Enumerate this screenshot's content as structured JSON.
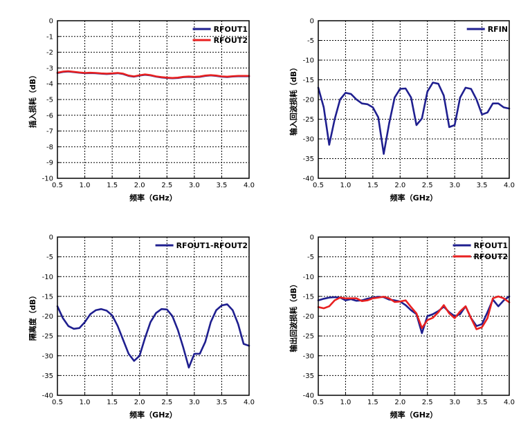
{
  "chart_data": [
    {
      "type": "line",
      "xlabel": "频率（GHz）",
      "ylabel": "插入损耗（dB）",
      "xlim": [
        0.5,
        4.0
      ],
      "ylim": [
        -10,
        0
      ],
      "xticks": [
        "0.5",
        "1.0",
        "1.5",
        "2.0",
        "2.5",
        "3.0",
        "3.5",
        "4.0"
      ],
      "yticks": [
        "0",
        "-1",
        "-2",
        "-3",
        "-4",
        "-5",
        "-6",
        "-7",
        "-8",
        "-9",
        "-10"
      ],
      "grid": true,
      "legend_position": "top-right",
      "series": [
        {
          "name": "RFOUT1",
          "color": "#1f1f8f",
          "x": [
            0.5,
            0.6,
            0.7,
            0.8,
            0.9,
            1.0,
            1.1,
            1.2,
            1.3,
            1.4,
            1.5,
            1.6,
            1.7,
            1.8,
            1.9,
            2.0,
            2.1,
            2.2,
            2.3,
            2.4,
            2.5,
            2.6,
            2.7,
            2.8,
            2.9,
            3.0,
            3.1,
            3.2,
            3.3,
            3.4,
            3.5,
            3.6,
            3.7,
            3.8,
            3.9,
            4.0
          ],
          "y": [
            -3.32,
            -3.25,
            -3.22,
            -3.26,
            -3.3,
            -3.33,
            -3.32,
            -3.33,
            -3.36,
            -3.38,
            -3.36,
            -3.33,
            -3.38,
            -3.5,
            -3.55,
            -3.48,
            -3.43,
            -3.47,
            -3.55,
            -3.6,
            -3.63,
            -3.65,
            -3.63,
            -3.58,
            -3.56,
            -3.58,
            -3.56,
            -3.5,
            -3.47,
            -3.5,
            -3.55,
            -3.57,
            -3.54,
            -3.52,
            -3.52,
            -3.52
          ]
        },
        {
          "name": "RFOUT2",
          "color": "#e82020",
          "x": [
            0.5,
            0.6,
            0.7,
            0.8,
            0.9,
            1.0,
            1.1,
            1.2,
            1.3,
            1.4,
            1.5,
            1.6,
            1.7,
            1.8,
            1.9,
            2.0,
            2.1,
            2.2,
            2.3,
            2.4,
            2.5,
            2.6,
            2.7,
            2.8,
            2.9,
            3.0,
            3.1,
            3.2,
            3.3,
            3.4,
            3.5,
            3.6,
            3.7,
            3.8,
            3.9,
            4.0
          ],
          "y": [
            -3.3,
            -3.23,
            -3.2,
            -3.24,
            -3.28,
            -3.31,
            -3.3,
            -3.31,
            -3.34,
            -3.36,
            -3.34,
            -3.31,
            -3.36,
            -3.48,
            -3.53,
            -3.46,
            -3.41,
            -3.45,
            -3.53,
            -3.58,
            -3.61,
            -3.63,
            -3.61,
            -3.56,
            -3.54,
            -3.56,
            -3.54,
            -3.48,
            -3.45,
            -3.48,
            -3.53,
            -3.55,
            -3.52,
            -3.5,
            -3.5,
            -3.5
          ]
        }
      ]
    },
    {
      "type": "line",
      "xlabel": "频率（GHz）",
      "ylabel": "输入回波损耗（dB）",
      "xlim": [
        0.5,
        4.0
      ],
      "ylim": [
        -40,
        0
      ],
      "xticks": [
        "0.5",
        "1.0",
        "1.5",
        "2.0",
        "2.5",
        "3.0",
        "3.5",
        "4.0"
      ],
      "yticks": [
        "0",
        "-5",
        "-10",
        "-15",
        "-20",
        "-25",
        "-30",
        "-35",
        "-40"
      ],
      "grid": true,
      "legend_position": "top-right",
      "series": [
        {
          "name": "RFIN",
          "color": "#1f1f8f",
          "x": [
            0.5,
            0.6,
            0.7,
            0.8,
            0.9,
            1.0,
            1.1,
            1.2,
            1.3,
            1.4,
            1.5,
            1.6,
            1.7,
            1.8,
            1.9,
            2.0,
            2.1,
            2.2,
            2.3,
            2.4,
            2.5,
            2.6,
            2.7,
            2.8,
            2.9,
            3.0,
            3.1,
            3.2,
            3.3,
            3.4,
            3.5,
            3.6,
            3.7,
            3.8,
            3.9,
            4.0
          ],
          "y": [
            -17,
            -22,
            -31.5,
            -25,
            -20,
            -18.3,
            -18.6,
            -20,
            -21,
            -21.2,
            -22,
            -24.5,
            -33.8,
            -26,
            -19.5,
            -17.3,
            -17.2,
            -19.5,
            -26.5,
            -24.8,
            -18,
            -15.7,
            -16,
            -19,
            -27,
            -26.5,
            -19.5,
            -17,
            -17.3,
            -20,
            -23.8,
            -23.3,
            -21,
            -21,
            -22,
            -22.3
          ]
        }
      ]
    },
    {
      "type": "line",
      "xlabel": "频率（GHz）",
      "ylabel": "隔离度（dB）",
      "xlim": [
        0.5,
        4.0
      ],
      "ylim": [
        -40,
        0
      ],
      "xticks": [
        "0.5",
        "1.0",
        "1.5",
        "2.0",
        "2.5",
        "3.0",
        "3.5",
        "4.0"
      ],
      "yticks": [
        "0",
        "-5",
        "-10",
        "-15",
        "-20",
        "-25",
        "-30",
        "-35",
        "-40"
      ],
      "grid": true,
      "legend_position": "top-right",
      "series": [
        {
          "name": "RFOUT1-RFOUT2",
          "color": "#1f1f8f",
          "x": [
            0.5,
            0.6,
            0.7,
            0.8,
            0.9,
            1.0,
            1.1,
            1.2,
            1.3,
            1.4,
            1.5,
            1.6,
            1.7,
            1.8,
            1.9,
            2.0,
            2.1,
            2.2,
            2.3,
            2.4,
            2.5,
            2.6,
            2.7,
            2.8,
            2.9,
            3.0,
            3.1,
            3.2,
            3.3,
            3.4,
            3.5,
            3.6,
            3.7,
            3.8,
            3.9,
            4.0
          ],
          "y": [
            -17.5,
            -20.5,
            -22.5,
            -23.2,
            -23,
            -21.5,
            -19.5,
            -18.5,
            -18.2,
            -18.6,
            -19.8,
            -22.5,
            -26,
            -29.5,
            -31.3,
            -30,
            -25.5,
            -21.5,
            -19.2,
            -18.2,
            -18.3,
            -20,
            -23.5,
            -28,
            -33,
            -29.5,
            -29.5,
            -26.5,
            -21.5,
            -18.5,
            -17.3,
            -17,
            -18.5,
            -22,
            -27,
            -27.5
          ]
        }
      ]
    },
    {
      "type": "line",
      "xlabel": "频率（GHz）",
      "ylabel": "输出回波损耗（dB）",
      "xlim": [
        0.5,
        4.0
      ],
      "ylim": [
        -40,
        0
      ],
      "xticks": [
        "0.5",
        "1.0",
        "1.5",
        "2.0",
        "2.5",
        "3.0",
        "3.5",
        "4.0"
      ],
      "yticks": [
        "0",
        "-5",
        "-10",
        "-15",
        "-20",
        "-25",
        "-30",
        "-35",
        "-40"
      ],
      "grid": true,
      "legend_position": "top-right",
      "series": [
        {
          "name": "RFOUT1",
          "color": "#1f1f8f",
          "x": [
            0.5,
            0.6,
            0.7,
            0.8,
            0.9,
            1.0,
            1.1,
            1.2,
            1.3,
            1.4,
            1.5,
            1.6,
            1.7,
            1.8,
            1.9,
            2.0,
            2.1,
            2.2,
            2.3,
            2.4,
            2.5,
            2.6,
            2.7,
            2.8,
            2.9,
            3.0,
            3.1,
            3.2,
            3.3,
            3.4,
            3.5,
            3.6,
            3.7,
            3.8,
            3.9,
            4.0
          ],
          "y": [
            -16,
            -15.6,
            -15.3,
            -15.2,
            -15.3,
            -16,
            -15.7,
            -16.1,
            -16,
            -15.6,
            -15.3,
            -15.1,
            -15.2,
            -15.8,
            -16,
            -16.3,
            -17.2,
            -18.5,
            -19.5,
            -24.3,
            -20,
            -19.5,
            -18.7,
            -17.6,
            -19,
            -20,
            -19.5,
            -17.5,
            -20.5,
            -22.5,
            -22,
            -19,
            -15.8,
            -17.5,
            -16,
            -15
          ]
        },
        {
          "name": "RFOUT2",
          "color": "#e82020",
          "x": [
            0.5,
            0.6,
            0.7,
            0.8,
            0.9,
            1.0,
            1.1,
            1.2,
            1.3,
            1.4,
            1.5,
            1.6,
            1.7,
            1.8,
            1.9,
            2.0,
            2.1,
            2.2,
            2.3,
            2.4,
            2.5,
            2.6,
            2.7,
            2.8,
            2.9,
            3.0,
            3.1,
            3.2,
            3.3,
            3.4,
            3.5,
            3.6,
            3.7,
            3.8,
            3.9,
            4.0
          ],
          "y": [
            -17.7,
            -18,
            -17.5,
            -16,
            -15.3,
            -15.5,
            -15.5,
            -15.5,
            -16.2,
            -16,
            -15.5,
            -15.3,
            -15.1,
            -15.5,
            -16.4,
            -16.3,
            -16,
            -17.7,
            -19.3,
            -23,
            -21,
            -20.4,
            -19,
            -17.2,
            -19.3,
            -20.5,
            -18.8,
            -17.5,
            -20.5,
            -23.3,
            -22.8,
            -20.5,
            -15.5,
            -15,
            -15.5,
            -16.5
          ]
        }
      ]
    }
  ]
}
